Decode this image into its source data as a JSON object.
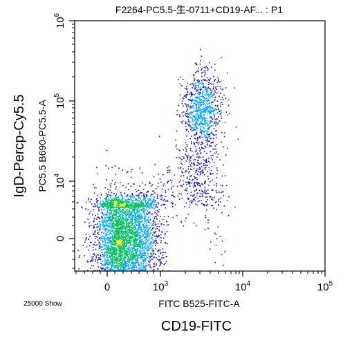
{
  "chart_data": {
    "type": "scatter",
    "title": "F2264-PC5.5-生-0711+CD19-AF... : P1",
    "xlabel": "FITC B525-FITC-A",
    "ylabel": "PC5.5 B690-PC5.5-A",
    "outer_xlabel": "CD19-FITC",
    "outer_ylabel": "IgD-Percp-Cy5.5",
    "event_count_label": "25000 Show",
    "x_ticks": [
      {
        "value": 0,
        "base": "0",
        "exp": ""
      },
      {
        "value": 1000,
        "base": "10",
        "exp": "3"
      },
      {
        "value": 10000,
        "base": "10",
        "exp": "4"
      },
      {
        "value": 100000,
        "base": "10",
        "exp": "5"
      }
    ],
    "y_ticks": [
      {
        "value": 0,
        "base": "0",
        "exp": ""
      },
      {
        "value": 10000,
        "base": "10",
        "exp": "4"
      },
      {
        "value": 100000,
        "base": "10",
        "exp": "5"
      },
      {
        "value": 1000000,
        "base": "10",
        "exp": "6"
      }
    ],
    "populations": [
      {
        "cx": 350,
        "cy": 0,
        "sx": 300,
        "sy": 900,
        "n": 2600
      },
      {
        "cx": 120,
        "cy": 0,
        "sx": 160,
        "sy": 1300,
        "n": 900
      },
      {
        "cx": 650,
        "cy": 300,
        "sx": 200,
        "sy": 1800,
        "n": 500
      },
      {
        "cx": 3200,
        "cy": 80000,
        "sx": 1300,
        "sy": 45000,
        "n": 700
      },
      {
        "cx": 3400,
        "cy": 2000,
        "sx": 1500,
        "sy": 1500,
        "n": 160
      },
      {
        "cx": 2800,
        "cy": 15000,
        "sx": 1100,
        "sy": 12000,
        "n": 250
      },
      {
        "cx": 700,
        "cy": 6000,
        "sx": 600,
        "sy": 6000,
        "n": 120
      },
      {
        "cx": 3000,
        "cy": 50000,
        "sx": 6000,
        "sy": 120000,
        "n": 140
      }
    ],
    "colors": {
      "sparse": "#1010c8",
      "low": "#00a6ff",
      "mid": "#00c060",
      "high": "#f0e000",
      "peak": "#ff3000"
    },
    "grid": false,
    "legend": "none"
  }
}
